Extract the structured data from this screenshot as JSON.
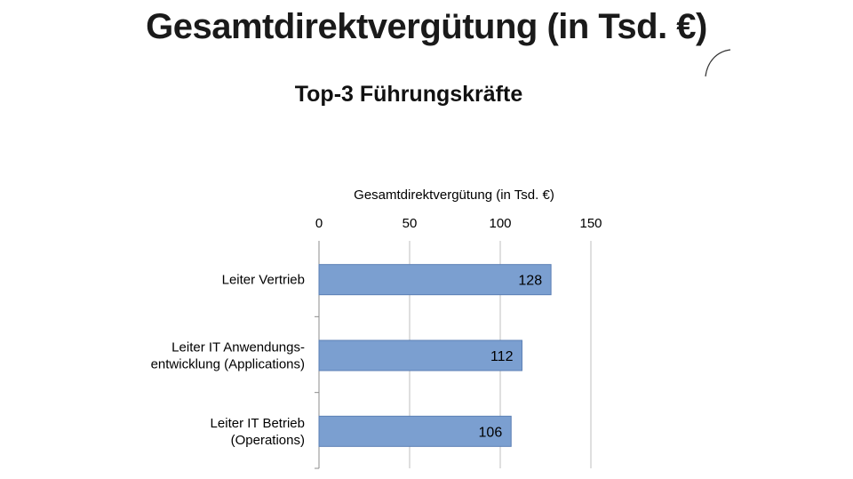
{
  "slide": {
    "title": "Gesamtdirektvergütung (in Tsd. €)",
    "subtitle": "Top-3 Führungskräfte"
  },
  "chart_data": {
    "type": "bar",
    "orientation": "horizontal",
    "xlabel": "Gesamtdirektvergütung (in Tsd. €)",
    "xaxis_position": "top",
    "xlim": [
      0,
      150
    ],
    "xticks": [
      0,
      50,
      100,
      150
    ],
    "grid": true,
    "bar_color": "#7b9fd0",
    "categories": [
      [
        "Leiter Vertrieb"
      ],
      [
        "Leiter IT Anwendungs-",
        "entwicklung (Applications)"
      ],
      [
        "Leiter IT Betrieb",
        "(Operations)"
      ]
    ],
    "values": [
      128,
      112,
      106
    ]
  }
}
